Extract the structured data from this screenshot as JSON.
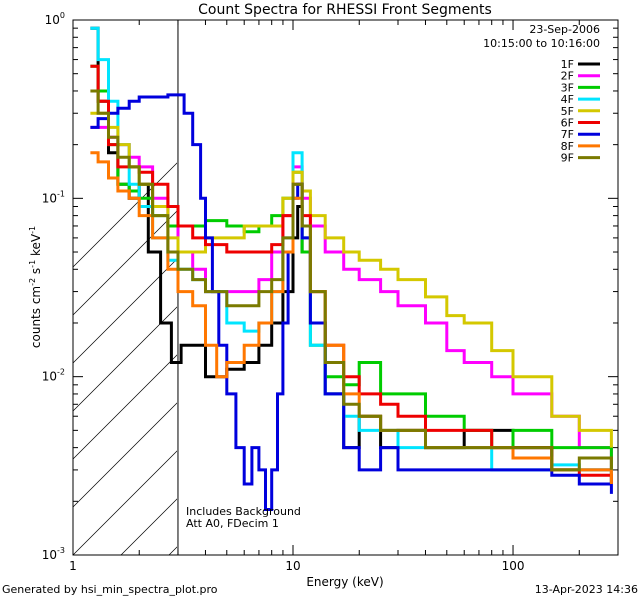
{
  "footer": {
    "generated": "Generated by hsi_min_spectra_plot.pro",
    "timestamp": "13-Apr-2023 14:36"
  },
  "chart_data": {
    "type": "line",
    "title": "Count Spectra for RHESSI Front Segments",
    "xlabel": "Energy (keV)",
    "ylabel_parts": [
      "counts cm",
      "-2",
      " s",
      "-1",
      " keV",
      "-1"
    ],
    "xscale": "log",
    "yscale": "log",
    "xlim": [
      1,
      300
    ],
    "ylim": [
      0.001,
      1
    ],
    "xticks": [
      {
        "v": 1,
        "label": "1"
      },
      {
        "v": 10,
        "label": "10"
      },
      {
        "v": 100,
        "label": "100"
      }
    ],
    "yticks": [
      {
        "v": 0.001,
        "base": "10",
        "exp": "-3"
      },
      {
        "v": 0.01,
        "base": "10",
        "exp": "-2"
      },
      {
        "v": 0.1,
        "base": "10",
        "exp": "-1"
      },
      {
        "v": 1,
        "base": "10",
        "exp": "0"
      }
    ],
    "header_lines": [
      "23-Sep-2006",
      "10:15:00 to 10:16:00"
    ],
    "annotations": [
      "Includes Background",
      "Att A0, FDecim 1"
    ],
    "threshold_energy": 3,
    "legend_position": "top-right",
    "series": [
      {
        "name": "1F",
        "color": "#000000",
        "points": [
          [
            1.2,
            0.9
          ],
          [
            1.3,
            0.35
          ],
          [
            1.45,
            0.18
          ],
          [
            1.6,
            0.12
          ],
          [
            1.8,
            0.1
          ],
          [
            2.0,
            0.12
          ],
          [
            2.2,
            0.05
          ],
          [
            2.5,
            0.02
          ],
          [
            2.8,
            0.012
          ],
          [
            3.1,
            0.015
          ],
          [
            3.5,
            0.015
          ],
          [
            4,
            0.01
          ],
          [
            5,
            0.011
          ],
          [
            6,
            0.012
          ],
          [
            7,
            0.015
          ],
          [
            8,
            0.02
          ],
          [
            9,
            0.03
          ],
          [
            10,
            0.06
          ],
          [
            10.5,
            0.09
          ],
          [
            11,
            0.05
          ],
          [
            12,
            0.02
          ],
          [
            14,
            0.008
          ],
          [
            17,
            0.004
          ],
          [
            20,
            0.006
          ],
          [
            25,
            0.004
          ],
          [
            30,
            0.005
          ],
          [
            40,
            0.004
          ],
          [
            60,
            0.005
          ],
          [
            80,
            0.005
          ],
          [
            100,
            0.004
          ],
          [
            150,
            0.003
          ],
          [
            200,
            0.003
          ],
          [
            280,
            0.0025
          ]
        ]
      },
      {
        "name": "2F",
        "color": "#ff00ff",
        "points": [
          [
            1.2,
            0.25
          ],
          [
            1.3,
            0.25
          ],
          [
            1.45,
            0.22
          ],
          [
            1.6,
            0.2
          ],
          [
            1.8,
            0.17
          ],
          [
            2.0,
            0.15
          ],
          [
            2.3,
            0.1
          ],
          [
            2.7,
            0.07
          ],
          [
            3.0,
            0.05
          ],
          [
            3.5,
            0.04
          ],
          [
            4,
            0.03
          ],
          [
            5,
            0.03
          ],
          [
            6,
            0.03
          ],
          [
            7,
            0.035
          ],
          [
            8,
            0.05
          ],
          [
            9,
            0.08
          ],
          [
            10,
            0.15
          ],
          [
            11,
            0.1
          ],
          [
            12,
            0.07
          ],
          [
            14,
            0.05
          ],
          [
            17,
            0.04
          ],
          [
            20,
            0.035
          ],
          [
            25,
            0.03
          ],
          [
            30,
            0.025
          ],
          [
            40,
            0.02
          ],
          [
            50,
            0.014
          ],
          [
            60,
            0.012
          ],
          [
            80,
            0.01
          ],
          [
            100,
            0.008
          ],
          [
            150,
            0.006
          ],
          [
            200,
            0.004
          ],
          [
            280,
            0.003
          ]
        ]
      },
      {
        "name": "3F",
        "color": "#00cc00",
        "points": [
          [
            1.2,
            0.55
          ],
          [
            1.3,
            0.4
          ],
          [
            1.45,
            0.2
          ],
          [
            1.6,
            0.12
          ],
          [
            1.8,
            0.11
          ],
          [
            2.0,
            0.1
          ],
          [
            2.3,
            0.08
          ],
          [
            2.7,
            0.07
          ],
          [
            3.0,
            0.07
          ],
          [
            3.5,
            0.07
          ],
          [
            4,
            0.075
          ],
          [
            5,
            0.07
          ],
          [
            6,
            0.065
          ],
          [
            7,
            0.07
          ],
          [
            8,
            0.08
          ],
          [
            9,
            0.1
          ],
          [
            10,
            0.14
          ],
          [
            11,
            0.05
          ],
          [
            12,
            0.015
          ],
          [
            14,
            0.01
          ],
          [
            17,
            0.009
          ],
          [
            20,
            0.012
          ],
          [
            25,
            0.008
          ],
          [
            30,
            0.008
          ],
          [
            40,
            0.006
          ],
          [
            60,
            0.005
          ],
          [
            80,
            0.004
          ],
          [
            100,
            0.005
          ],
          [
            150,
            0.004
          ],
          [
            200,
            0.004
          ],
          [
            280,
            0.003
          ]
        ]
      },
      {
        "name": "4F",
        "color": "#00e5ff",
        "points": [
          [
            1.2,
            0.9
          ],
          [
            1.3,
            0.6
          ],
          [
            1.45,
            0.35
          ],
          [
            1.6,
            0.2
          ],
          [
            1.8,
            0.12
          ],
          [
            2.0,
            0.09
          ],
          [
            2.3,
            0.06
          ],
          [
            2.7,
            0.045
          ],
          [
            3.0,
            0.04
          ],
          [
            3.5,
            0.035
          ],
          [
            4,
            0.03
          ],
          [
            5,
            0.02
          ],
          [
            6,
            0.018
          ],
          [
            7,
            0.02
          ],
          [
            8,
            0.03
          ],
          [
            9,
            0.06
          ],
          [
            10,
            0.18
          ],
          [
            11,
            0.06
          ],
          [
            12,
            0.015
          ],
          [
            14,
            0.008
          ],
          [
            17,
            0.006
          ],
          [
            20,
            0.005
          ],
          [
            25,
            0.005
          ],
          [
            30,
            0.004
          ],
          [
            40,
            0.004
          ],
          [
            60,
            0.004
          ],
          [
            80,
            0.003
          ],
          [
            100,
            0.003
          ],
          [
            150,
            0.0032
          ],
          [
            200,
            0.003
          ],
          [
            280,
            0.0025
          ]
        ]
      },
      {
        "name": "5F",
        "color": "#d4c800",
        "points": [
          [
            1.2,
            0.3
          ],
          [
            1.3,
            0.3
          ],
          [
            1.45,
            0.25
          ],
          [
            1.6,
            0.2
          ],
          [
            1.8,
            0.15
          ],
          [
            2.0,
            0.12
          ],
          [
            2.3,
            0.09
          ],
          [
            2.7,
            0.06
          ],
          [
            3.0,
            0.05
          ],
          [
            3.5,
            0.05
          ],
          [
            4,
            0.06
          ],
          [
            5,
            0.06
          ],
          [
            6,
            0.07
          ],
          [
            7,
            0.07
          ],
          [
            8,
            0.07
          ],
          [
            9,
            0.1
          ],
          [
            10,
            0.14
          ],
          [
            11,
            0.11
          ],
          [
            12,
            0.08
          ],
          [
            14,
            0.06
          ],
          [
            17,
            0.05
          ],
          [
            20,
            0.045
          ],
          [
            25,
            0.04
          ],
          [
            30,
            0.035
          ],
          [
            40,
            0.028
          ],
          [
            50,
            0.022
          ],
          [
            60,
            0.02
          ],
          [
            80,
            0.014
          ],
          [
            100,
            0.01
          ],
          [
            150,
            0.006
          ],
          [
            200,
            0.005
          ],
          [
            280,
            0.004
          ]
        ]
      },
      {
        "name": "6F",
        "color": "#ee0000",
        "points": [
          [
            1.2,
            0.55
          ],
          [
            1.3,
            0.35
          ],
          [
            1.45,
            0.2
          ],
          [
            1.6,
            0.15
          ],
          [
            1.8,
            0.15
          ],
          [
            2.0,
            0.14
          ],
          [
            2.3,
            0.12
          ],
          [
            2.7,
            0.09
          ],
          [
            3.0,
            0.07
          ],
          [
            3.5,
            0.06
          ],
          [
            4,
            0.055
          ],
          [
            5,
            0.05
          ],
          [
            6,
            0.05
          ],
          [
            7,
            0.05
          ],
          [
            8,
            0.055
          ],
          [
            9,
            0.08
          ],
          [
            10,
            0.12
          ],
          [
            11,
            0.08
          ],
          [
            12,
            0.03
          ],
          [
            14,
            0.015
          ],
          [
            17,
            0.01
          ],
          [
            20,
            0.008
          ],
          [
            25,
            0.007
          ],
          [
            30,
            0.006
          ],
          [
            40,
            0.005
          ],
          [
            60,
            0.005
          ],
          [
            80,
            0.004
          ],
          [
            100,
            0.004
          ],
          [
            150,
            0.003
          ],
          [
            200,
            0.0028
          ],
          [
            280,
            0.0025
          ]
        ]
      },
      {
        "name": "7F",
        "color": "#0000dd",
        "points": [
          [
            1.2,
            0.25
          ],
          [
            1.3,
            0.28
          ],
          [
            1.45,
            0.3
          ],
          [
            1.6,
            0.32
          ],
          [
            1.8,
            0.35
          ],
          [
            2.0,
            0.37
          ],
          [
            2.3,
            0.37
          ],
          [
            2.7,
            0.38
          ],
          [
            3.0,
            0.38
          ],
          [
            3.2,
            0.3
          ],
          [
            3.5,
            0.2
          ],
          [
            3.8,
            0.1
          ],
          [
            4,
            0.06
          ],
          [
            4.3,
            0.03
          ],
          [
            4.6,
            0.015
          ],
          [
            5,
            0.008
          ],
          [
            5.5,
            0.004
          ],
          [
            6,
            0.0025
          ],
          [
            6.5,
            0.004
          ],
          [
            7,
            0.003
          ],
          [
            7.5,
            0.0018
          ],
          [
            8,
            0.003
          ],
          [
            8.5,
            0.008
          ],
          [
            9,
            0.02
          ],
          [
            9.5,
            0.05
          ],
          [
            10,
            0.1
          ],
          [
            10.5,
            0.12
          ],
          [
            11,
            0.06
          ],
          [
            12,
            0.02
          ],
          [
            14,
            0.008
          ],
          [
            17,
            0.004
          ],
          [
            20,
            0.003
          ],
          [
            25,
            0.004
          ],
          [
            30,
            0.003
          ],
          [
            40,
            0.003
          ],
          [
            60,
            0.003
          ],
          [
            80,
            0.003
          ],
          [
            100,
            0.003
          ],
          [
            150,
            0.0028
          ],
          [
            200,
            0.0025
          ],
          [
            280,
            0.0022
          ]
        ]
      },
      {
        "name": "8F",
        "color": "#ff7700",
        "points": [
          [
            1.2,
            0.18
          ],
          [
            1.3,
            0.16
          ],
          [
            1.45,
            0.13
          ],
          [
            1.6,
            0.11
          ],
          [
            1.8,
            0.1
          ],
          [
            2.0,
            0.08
          ],
          [
            2.3,
            0.06
          ],
          [
            2.7,
            0.04
          ],
          [
            3.0,
            0.03
          ],
          [
            3.5,
            0.025
          ],
          [
            4,
            0.015
          ],
          [
            4.5,
            0.01
          ],
          [
            5,
            0.012
          ],
          [
            6,
            0.015
          ],
          [
            7,
            0.02
          ],
          [
            8,
            0.03
          ],
          [
            9,
            0.05
          ],
          [
            10,
            0.1
          ],
          [
            11,
            0.07
          ],
          [
            12,
            0.03
          ],
          [
            14,
            0.015
          ],
          [
            17,
            0.008
          ],
          [
            20,
            0.006
          ],
          [
            25,
            0.005
          ],
          [
            30,
            0.005
          ],
          [
            40,
            0.004
          ],
          [
            60,
            0.004
          ],
          [
            80,
            0.004
          ],
          [
            100,
            0.0035
          ],
          [
            150,
            0.003
          ],
          [
            200,
            0.003
          ],
          [
            280,
            0.0025
          ]
        ]
      },
      {
        "name": "9F",
        "color": "#7a7a00",
        "points": [
          [
            1.2,
            0.4
          ],
          [
            1.3,
            0.3
          ],
          [
            1.45,
            0.22
          ],
          [
            1.6,
            0.17
          ],
          [
            1.8,
            0.15
          ],
          [
            2.0,
            0.12
          ],
          [
            2.3,
            0.08
          ],
          [
            2.7,
            0.05
          ],
          [
            3.0,
            0.04
          ],
          [
            3.5,
            0.035
          ],
          [
            4,
            0.03
          ],
          [
            5,
            0.025
          ],
          [
            6,
            0.025
          ],
          [
            7,
            0.03
          ],
          [
            8,
            0.035
          ],
          [
            9,
            0.06
          ],
          [
            10,
            0.12
          ],
          [
            11,
            0.07
          ],
          [
            12,
            0.03
          ],
          [
            14,
            0.012
          ],
          [
            17,
            0.007
          ],
          [
            20,
            0.006
          ],
          [
            25,
            0.005
          ],
          [
            30,
            0.005
          ],
          [
            40,
            0.004
          ],
          [
            60,
            0.004
          ],
          [
            80,
            0.004
          ],
          [
            100,
            0.004
          ],
          [
            150,
            0.003
          ],
          [
            200,
            0.0035
          ],
          [
            280,
            0.003
          ]
        ]
      }
    ]
  }
}
